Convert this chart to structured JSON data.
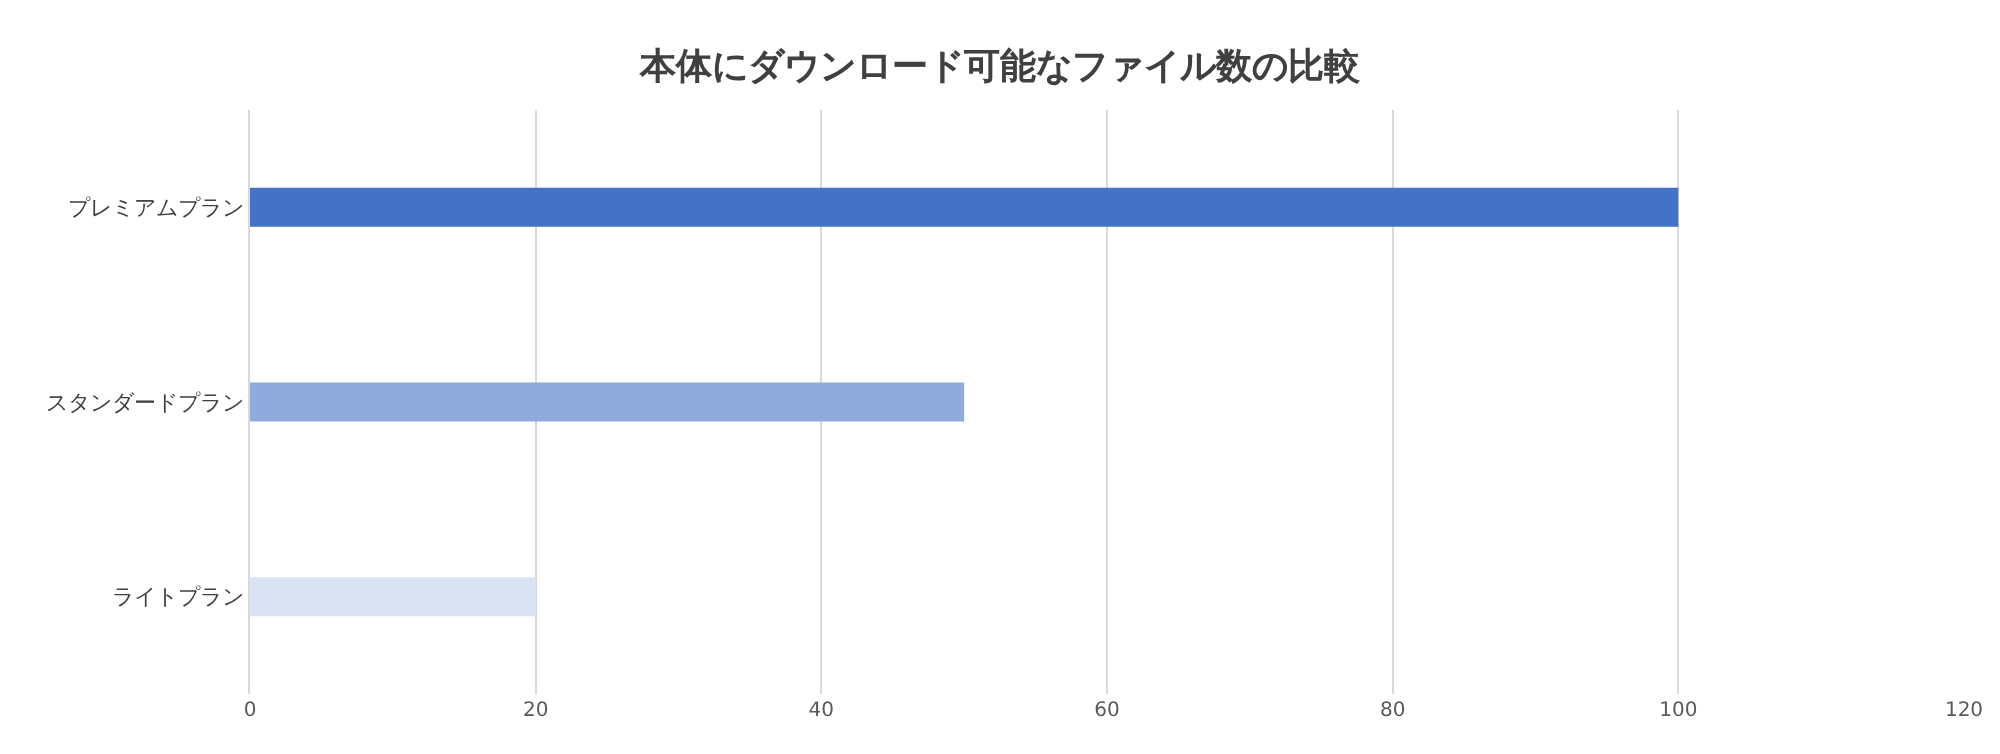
{
  "chart_data": {
    "type": "bar",
    "orientation": "horizontal",
    "title": "本体にダウンロード可能なファイル数の比較",
    "categories": [
      "プレミアムプラン",
      "スタンダードプラン",
      "ライトプラン"
    ],
    "values": [
      100,
      50,
      20
    ],
    "colors": [
      "#4472c4",
      "#8faadc",
      "#dae3f3"
    ],
    "xlim": [
      0,
      120
    ],
    "xticks": [
      0,
      20,
      40,
      60,
      80,
      100,
      120
    ],
    "grid": "x",
    "legend": false
  }
}
